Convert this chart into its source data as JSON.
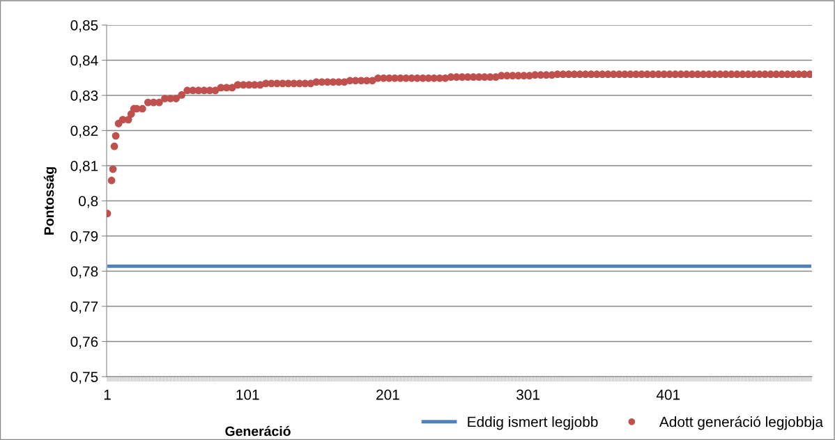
{
  "chart_data": {
    "type": "scatter",
    "xlabel": "Generáció",
    "ylabel": "Pontosság",
    "xlim": [
      0.5,
      503.5
    ],
    "xticks": [
      1,
      101,
      201,
      301,
      401
    ],
    "ylim": [
      0.75,
      0.85
    ],
    "yticks": [
      {
        "value": 0.75,
        "label": "0,75"
      },
      {
        "value": 0.76,
        "label": "0,76"
      },
      {
        "value": 0.77,
        "label": "0,77"
      },
      {
        "value": 0.78,
        "label": "0,78"
      },
      {
        "value": 0.79,
        "label": "0,79"
      },
      {
        "value": 0.8,
        "label": "0,8"
      },
      {
        "value": 0.81,
        "label": "0,81"
      },
      {
        "value": 0.82,
        "label": "0,82"
      },
      {
        "value": 0.83,
        "label": "0,83"
      },
      {
        "value": 0.84,
        "label": "0,84"
      },
      {
        "value": 0.85,
        "label": "0,85"
      }
    ],
    "grid": "y",
    "legend": "bottom",
    "series": [
      {
        "name": "Eddig ismert legjobb",
        "type": "line",
        "line_style": "solid",
        "marker": "none",
        "color": "#4f81bd",
        "x": [
          1,
          503
        ],
        "values": [
          0.7814,
          0.7814
        ]
      },
      {
        "name": "Adott generáció legjobbja",
        "marker": "circle",
        "color": "#c0504d",
        "x": [
          1,
          4,
          5,
          6,
          7,
          9,
          12,
          16,
          18,
          20,
          22,
          26,
          30,
          34,
          38,
          42,
          46,
          50,
          54,
          58,
          62,
          66,
          70,
          74,
          78,
          82,
          86,
          90,
          94,
          98,
          102,
          106,
          110,
          114,
          118,
          122,
          126,
          130,
          134,
          138,
          142,
          146,
          150,
          154,
          158,
          162,
          166,
          170,
          174,
          178,
          182,
          186,
          190,
          194,
          198,
          202,
          206,
          210,
          214,
          218,
          222,
          226,
          230,
          234,
          238,
          242,
          246,
          250,
          254,
          258,
          262,
          266,
          270,
          274,
          278,
          282,
          286,
          290,
          294,
          298,
          302,
          306,
          310,
          314,
          318,
          322,
          326,
          330,
          334,
          338,
          342,
          346,
          350,
          354,
          358,
          362,
          366,
          370,
          374,
          378,
          382,
          386,
          390,
          394,
          398,
          402,
          406,
          410,
          414,
          418,
          422,
          426,
          430,
          434,
          438,
          442,
          446,
          450,
          454,
          458,
          462,
          466,
          470,
          474,
          478,
          482,
          486,
          490,
          494,
          498,
          502
        ],
        "values": [
          0.7964,
          0.8058,
          0.809,
          0.8155,
          0.8185,
          0.822,
          0.8231,
          0.8231,
          0.8247,
          0.8262,
          0.8262,
          0.8262,
          0.828,
          0.828,
          0.828,
          0.8291,
          0.8291,
          0.8291,
          0.8301,
          0.8314,
          0.8314,
          0.8314,
          0.8314,
          0.8314,
          0.8314,
          0.8322,
          0.8322,
          0.8322,
          0.833,
          0.833,
          0.833,
          0.833,
          0.833,
          0.8334,
          0.8334,
          0.8334,
          0.8334,
          0.8334,
          0.8334,
          0.8334,
          0.8334,
          0.8334,
          0.8338,
          0.8338,
          0.8338,
          0.8338,
          0.8338,
          0.8338,
          0.8342,
          0.8342,
          0.8342,
          0.8342,
          0.8342,
          0.8349,
          0.8349,
          0.8349,
          0.8349,
          0.8349,
          0.8349,
          0.8349,
          0.8349,
          0.8349,
          0.8349,
          0.8349,
          0.8349,
          0.8349,
          0.8352,
          0.8352,
          0.8352,
          0.8352,
          0.8352,
          0.8352,
          0.8352,
          0.8352,
          0.8352,
          0.8356,
          0.8356,
          0.8356,
          0.8356,
          0.8356,
          0.8356,
          0.8358,
          0.8358,
          0.8358,
          0.8358,
          0.836,
          0.836,
          0.836,
          0.836,
          0.836,
          0.836,
          0.836,
          0.836,
          0.836,
          0.836,
          0.836,
          0.836,
          0.836,
          0.836,
          0.836,
          0.836,
          0.836,
          0.836,
          0.836,
          0.836,
          0.836,
          0.836,
          0.836,
          0.836,
          0.836,
          0.836,
          0.836,
          0.836,
          0.836,
          0.836,
          0.836,
          0.836,
          0.836,
          0.836,
          0.836,
          0.836,
          0.836,
          0.836,
          0.836,
          0.836,
          0.836,
          0.836,
          0.836,
          0.836,
          0.836,
          0.836
        ]
      }
    ]
  }
}
